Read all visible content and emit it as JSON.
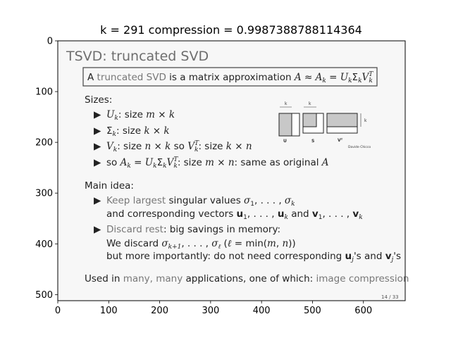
{
  "chart_data": {
    "type": "image",
    "title": "k = 291 compression = 0.9987388788114364",
    "x_ticks": [
      "0",
      "100",
      "200",
      "300",
      "400",
      "500",
      "600"
    ],
    "y_ticks": [
      "0",
      "100",
      "200",
      "300",
      "400",
      "500"
    ],
    "xlim": [
      0,
      682
    ],
    "ylim": [
      512,
      0
    ],
    "grid": false
  },
  "slide": {
    "title": "TSVD: truncated SVD",
    "box_text": "A truncated SVD is a matrix approximation A ≈ A_k = U_k Σ_k V_k^T",
    "sizes_heading": "Sizes:",
    "sizes_items": [
      "U_k: size m × k",
      "Σ_k: size k × k",
      "V_k: size n × k    so V_k^T: size k × n",
      "so A_k = U_k Σ_k V_k^T: size m × n: same as original A"
    ],
    "main_heading": "Main idea:",
    "main_item1_line1": "Keep largest singular values σ1, . . . , σk",
    "main_item1_line2": "and corresponding vectors u1, . . . , uk and v1, . . . , vk",
    "main_item2_line1": "Discard rest: big savings in memory:",
    "main_item2_line2": "We discard σk+1, . . . , σℓ    (ℓ = min(m, n))",
    "main_item2_line3": "but more importantly: do not need corresponding uj's and vj's",
    "footer": "Used in many, many applications, one of which: image compression",
    "page_number": "14 / 33",
    "diagram_labels": [
      "k",
      "k",
      "k",
      "U",
      "S",
      "Vᵀ",
      "Davide Chicco"
    ]
  }
}
